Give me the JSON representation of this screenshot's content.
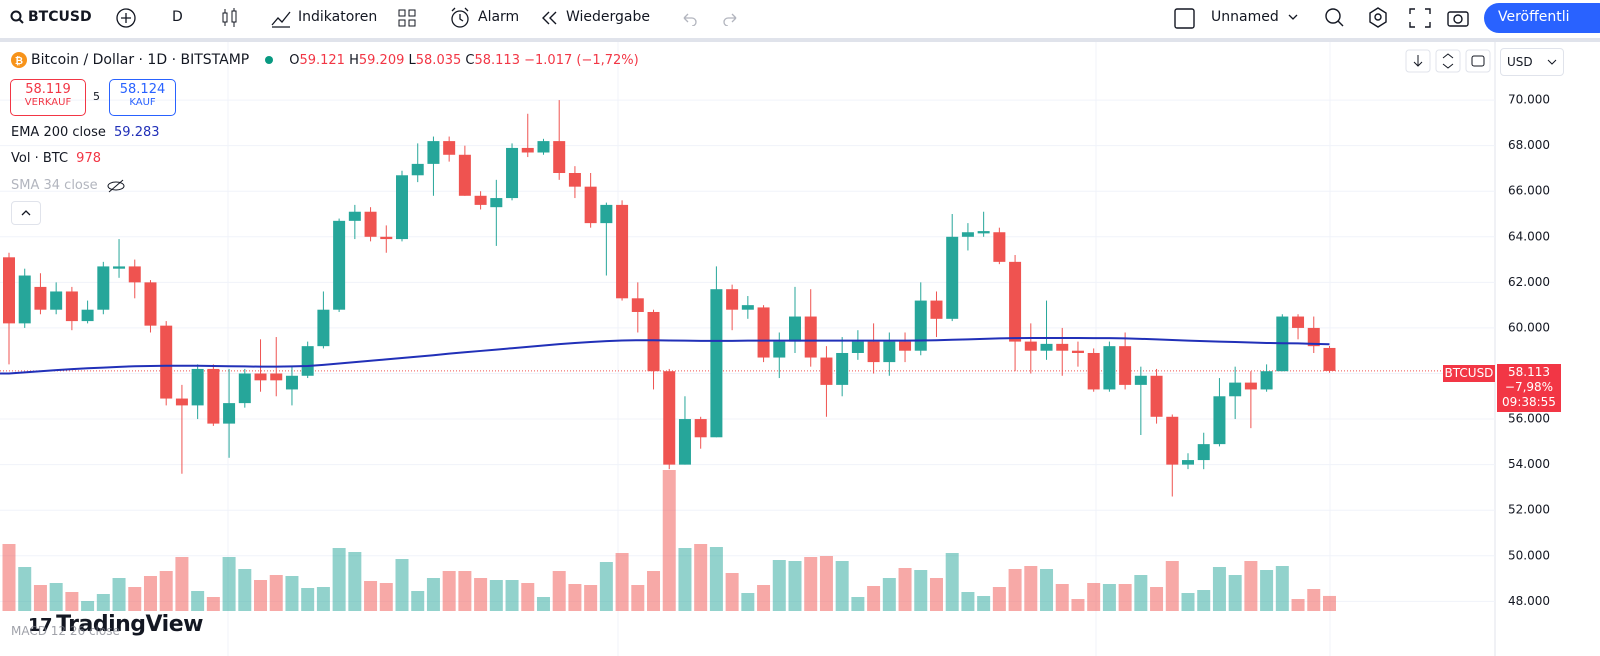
{
  "toolbar": {
    "symbol": "BTCUSD",
    "interval": "D",
    "indicators": "Indikatoren",
    "alert": "Alarm",
    "replay": "Wiedergabe",
    "layout": "Unnamed",
    "publish": "Veröffentli"
  },
  "legend": {
    "title": "Bitcoin / Dollar · 1D · BITSTAMP",
    "o_label": "O",
    "o": "59.121",
    "h_label": "H",
    "h": "59.209",
    "l_label": "L",
    "l": "58.035",
    "c_label": "C",
    "c": "58.113",
    "change": "−1.017 (−1,72%)",
    "sell_price": "58.119",
    "sell": "VERKAUF",
    "spread": "5",
    "buy_price": "58.124",
    "buy": "KAUF",
    "ema_name": "EMA 200 close",
    "ema_value": "59.283",
    "vol_name": "Vol · BTC",
    "vol_value": "978",
    "sma_name": "SMA 34 close",
    "macd_name": "MACD 12 26 close"
  },
  "currency": "USD",
  "logo": "TradingView",
  "price_tag": {
    "name": "BTCUSD",
    "price": "58.113",
    "change": "−7,98%",
    "countdown": "09:38:55"
  },
  "chart_data": {
    "type": "candlestick",
    "up_color": "#26a69a",
    "down_color": "#ef5350",
    "ema_color": "#2130b8",
    "ylim": [
      45600,
      72550
    ],
    "yticks": [
      {
        "value": 48000,
        "label": "48.000"
      },
      {
        "value": 50000,
        "label": "50.000"
      },
      {
        "value": 52000,
        "label": "52.000"
      },
      {
        "value": 54000,
        "label": "54.000"
      },
      {
        "value": 56000,
        "label": "56.000"
      },
      {
        "value": 58000,
        "label": "58.000"
      },
      {
        "value": 60000,
        "label": "60.000"
      },
      {
        "value": 62000,
        "label": "62.000"
      },
      {
        "value": 64000,
        "label": "64.000"
      },
      {
        "value": 66000,
        "label": "66.000"
      },
      {
        "value": 68000,
        "label": "68.000"
      },
      {
        "value": 70000,
        "label": "70.000"
      }
    ],
    "grid": true,
    "last_price": 58113,
    "open": [
      63100,
      60200,
      61800,
      60800,
      61600,
      60300,
      60800,
      62600,
      62700,
      62000,
      60100,
      56900,
      56600,
      58200,
      55800,
      56700,
      58000,
      58000,
      57300,
      57900,
      59200,
      60800,
      64700,
      65100,
      64000,
      63900,
      66700,
      67200,
      68200,
      67600,
      65800,
      65300,
      65700,
      67900,
      67700,
      68200,
      66800,
      66200,
      64600,
      65400,
      61300,
      60700,
      58100,
      54000,
      56000,
      55200,
      61700,
      60800,
      60900,
      58700,
      59400,
      60500,
      58700,
      57500,
      58900,
      59400,
      58500,
      59400,
      59000,
      61200,
      60400,
      64000,
      64150,
      64200,
      62900,
      59400,
      59000,
      59300,
      59000,
      58900,
      57300,
      59200,
      57500,
      57900,
      56100,
      54000,
      54200,
      54900,
      57000,
      57600,
      57300,
      58100,
      60500,
      60000,
      59121
    ],
    "high": [
      63300,
      62600,
      62400,
      62000,
      61800,
      61200,
      62900,
      63900,
      63000,
      62100,
      60300,
      57500,
      58400,
      58400,
      58200,
      58200,
      59500,
      59600,
      58300,
      59400,
      61600,
      64800,
      65400,
      65300,
      64500,
      66900,
      68100,
      68400,
      68400,
      68000,
      66000,
      66500,
      68100,
      69400,
      68300,
      70000,
      67100,
      66800,
      65500,
      65600,
      62000,
      60800,
      58200,
      57000,
      56100,
      62700,
      61900,
      61400,
      61000,
      59800,
      61800,
      61700,
      59200,
      59600,
      59900,
      60200,
      59800,
      59800,
      62000,
      61600,
      65000,
      64600,
      65100,
      64400,
      63200,
      60200,
      61200,
      60000,
      59400,
      59100,
      59400,
      59800,
      58300,
      58200,
      56200,
      54500,
      55400,
      57800,
      58300,
      58100,
      58400,
      60600,
      60600,
      60500,
      59209
    ],
    "low": [
      58400,
      60000,
      60600,
      60600,
      59900,
      60200,
      60600,
      62200,
      61300,
      59800,
      56600,
      53600,
      56000,
      55700,
      54300,
      56500,
      57200,
      57000,
      56600,
      57800,
      59100,
      60700,
      63900,
      63800,
      63300,
      63800,
      66400,
      65800,
      67300,
      65800,
      65200,
      63600,
      65600,
      67500,
      67600,
      66500,
      65700,
      64400,
      62300,
      61200,
      59800,
      57300,
      53800,
      54000,
      54700,
      55200,
      59900,
      60400,
      58500,
      57800,
      58900,
      58300,
      56100,
      57000,
      58600,
      58000,
      57900,
      58500,
      58800,
      59600,
      60300,
      63400,
      64000,
      62800,
      58100,
      58000,
      58600,
      57900,
      58300,
      57200,
      57200,
      57300,
      55300,
      55800,
      52600,
      53800,
      53800,
      54800,
      56000,
      55600,
      57200,
      58100,
      59500,
      58900,
      58035
    ],
    "close": [
      60200,
      62300,
      60800,
      61600,
      60300,
      60800,
      62700,
      62700,
      62000,
      60100,
      56900,
      56600,
      58200,
      55800,
      56700,
      58000,
      57700,
      57700,
      57900,
      59200,
      60800,
      64700,
      65100,
      64000,
      63900,
      66700,
      67200,
      68200,
      67600,
      65800,
      65400,
      65700,
      67900,
      67700,
      68200,
      66800,
      66200,
      64600,
      65400,
      61300,
      60700,
      58100,
      54000,
      56000,
      55200,
      61700,
      60800,
      61000,
      58700,
      59400,
      60500,
      58700,
      57500,
      58900,
      59400,
      58500,
      59400,
      59000,
      61200,
      60400,
      64000,
      64200,
      64250,
      62900,
      59400,
      59000,
      59300,
      59000,
      58900,
      57300,
      59200,
      57500,
      57900,
      56100,
      54000,
      54200,
      54900,
      57000,
      57600,
      57300,
      58100,
      60500,
      60000,
      59200,
      58113
    ],
    "volume": [
      4355,
      2860,
      1690,
      1820,
      1235,
      650,
      1105,
      2145,
      1560,
      2275,
      2600,
      3510,
      1300,
      910,
      3510,
      2730,
      2015,
      2340,
      2275,
      1495,
      1560,
      4095,
      3835,
      1950,
      1820,
      3380,
      1300,
      2145,
      2600,
      2600,
      2145,
      2015,
      2015,
      1820,
      910,
      2600,
      1755,
      1690,
      3185,
      3770,
      1690,
      2600,
      9165,
      4095,
      4355,
      4160,
      2470,
      1170,
      1690,
      3315,
      3250,
      3510,
      3575,
      3250,
      910,
      1625,
      2145,
      2795,
      2665,
      2145,
      3770,
      1235,
      975,
      1560,
      2730,
      2925,
      2730,
      1755,
      780,
      1820,
      1755,
      1755,
      2340,
      1560,
      3250,
      1170,
      1365,
      2860,
      2340,
      3250,
      2665,
      2925,
      780,
      1430,
      978
    ],
    "ema": [
      58000,
      58050,
      58100,
      58150,
      58190,
      58230,
      58260,
      58290,
      58320,
      58330,
      58340,
      58340,
      58340,
      58330,
      58320,
      58310,
      58300,
      58300,
      58310,
      58330,
      58380,
      58440,
      58500,
      58560,
      58620,
      58680,
      58740,
      58800,
      58870,
      58930,
      58990,
      59050,
      59110,
      59170,
      59230,
      59290,
      59340,
      59380,
      59420,
      59450,
      59460,
      59460,
      59450,
      59440,
      59430,
      59430,
      59430,
      59440,
      59440,
      59440,
      59440,
      59440,
      59440,
      59440,
      59440,
      59440,
      59440,
      59440,
      59450,
      59460,
      59480,
      59500,
      59520,
      59540,
      59550,
      59560,
      59560,
      59560,
      59560,
      59550,
      59550,
      59540,
      59520,
      59500,
      59470,
      59440,
      59420,
      59400,
      59380,
      59360,
      59340,
      59330,
      59320,
      59300,
      59283
    ]
  }
}
